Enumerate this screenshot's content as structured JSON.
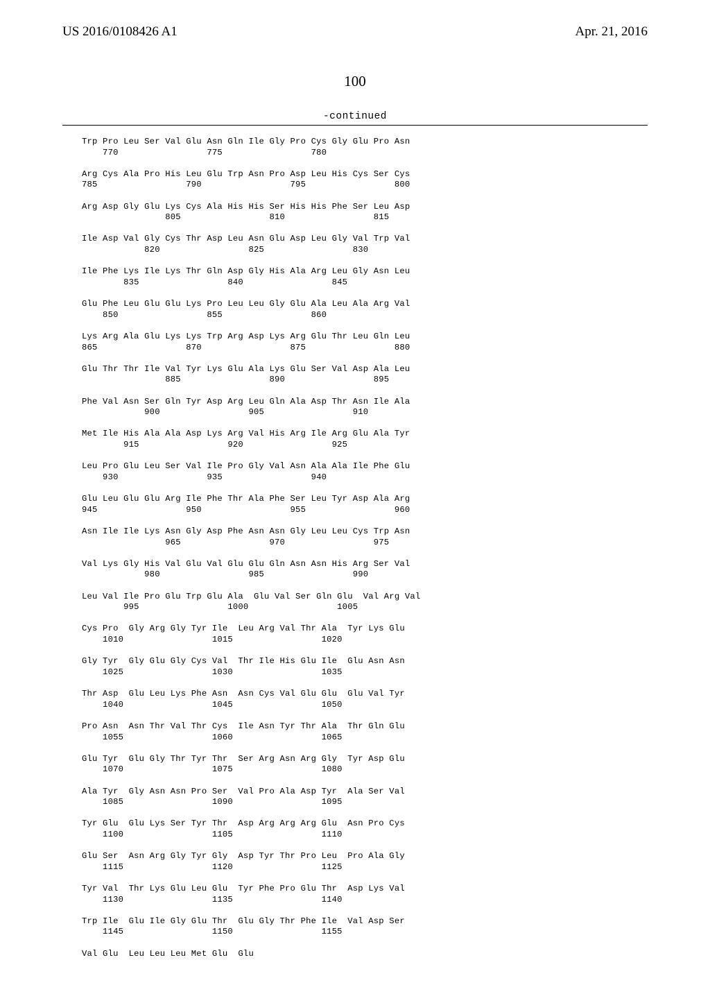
{
  "header": {
    "left": "US 2016/0108426 A1",
    "right": "Apr. 21, 2016"
  },
  "page_number": "100",
  "continued": "-continued",
  "sequence": [
    "Trp Pro Leu Ser Val Glu Asn Gln Ile Gly Pro Cys Gly Glu Pro Asn",
    "    770                 775                 780",
    "",
    "Arg Cys Ala Pro His Leu Glu Trp Asn Pro Asp Leu His Cys Ser Cys",
    "785                 790                 795                 800",
    "",
    "Arg Asp Gly Glu Lys Cys Ala His His Ser His His Phe Ser Leu Asp",
    "                805                 810                 815",
    "",
    "Ile Asp Val Gly Cys Thr Asp Leu Asn Glu Asp Leu Gly Val Trp Val",
    "            820                 825                 830",
    "",
    "Ile Phe Lys Ile Lys Thr Gln Asp Gly His Ala Arg Leu Gly Asn Leu",
    "        835                 840                 845",
    "",
    "Glu Phe Leu Glu Glu Lys Pro Leu Leu Gly Glu Ala Leu Ala Arg Val",
    "    850                 855                 860",
    "",
    "Lys Arg Ala Glu Lys Lys Trp Arg Asp Lys Arg Glu Thr Leu Gln Leu",
    "865                 870                 875                 880",
    "",
    "Glu Thr Thr Ile Val Tyr Lys Glu Ala Lys Glu Ser Val Asp Ala Leu",
    "                885                 890                 895",
    "",
    "Phe Val Asn Ser Gln Tyr Asp Arg Leu Gln Ala Asp Thr Asn Ile Ala",
    "            900                 905                 910",
    "",
    "Met Ile His Ala Ala Asp Lys Arg Val His Arg Ile Arg Glu Ala Tyr",
    "        915                 920                 925",
    "",
    "Leu Pro Glu Leu Ser Val Ile Pro Gly Val Asn Ala Ala Ile Phe Glu",
    "    930                 935                 940",
    "",
    "Glu Leu Glu Glu Arg Ile Phe Thr Ala Phe Ser Leu Tyr Asp Ala Arg",
    "945                 950                 955                 960",
    "",
    "Asn Ile Ile Lys Asn Gly Asp Phe Asn Asn Gly Leu Leu Cys Trp Asn",
    "                965                 970                 975",
    "",
    "Val Lys Gly His Val Glu Val Glu Glu Gln Asn Asn His Arg Ser Val",
    "            980                 985                 990",
    "",
    "Leu Val Ile Pro Glu Trp Glu Ala  Glu Val Ser Gln Glu  Val Arg Val",
    "        995                 1000                 1005",
    "",
    "Cys Pro  Gly Arg Gly Tyr Ile  Leu Arg Val Thr Ala  Tyr Lys Glu",
    "    1010                 1015                 1020",
    "",
    "Gly Tyr  Gly Glu Gly Cys Val  Thr Ile His Glu Ile  Glu Asn Asn",
    "    1025                 1030                 1035",
    "",
    "Thr Asp  Glu Leu Lys Phe Asn  Asn Cys Val Glu Glu  Glu Val Tyr",
    "    1040                 1045                 1050",
    "",
    "Pro Asn  Asn Thr Val Thr Cys  Ile Asn Tyr Thr Ala  Thr Gln Glu",
    "    1055                 1060                 1065",
    "",
    "Glu Tyr  Glu Gly Thr Tyr Thr  Ser Arg Asn Arg Gly  Tyr Asp Glu",
    "    1070                 1075                 1080",
    "",
    "Ala Tyr  Gly Asn Asn Pro Ser  Val Pro Ala Asp Tyr  Ala Ser Val",
    "    1085                 1090                 1095",
    "",
    "Tyr Glu  Glu Lys Ser Tyr Thr  Asp Arg Arg Arg Glu  Asn Pro Cys",
    "    1100                 1105                 1110",
    "",
    "Glu Ser  Asn Arg Gly Tyr Gly  Asp Tyr Thr Pro Leu  Pro Ala Gly",
    "    1115                 1120                 1125",
    "",
    "Tyr Val  Thr Lys Glu Leu Glu  Tyr Phe Pro Glu Thr  Asp Lys Val",
    "    1130                 1135                 1140",
    "",
    "Trp Ile  Glu Ile Gly Glu Thr  Glu Gly Thr Phe Ile  Val Asp Ser",
    "    1145                 1150                 1155",
    "",
    "Val Glu  Leu Leu Leu Met Glu  Glu"
  ]
}
